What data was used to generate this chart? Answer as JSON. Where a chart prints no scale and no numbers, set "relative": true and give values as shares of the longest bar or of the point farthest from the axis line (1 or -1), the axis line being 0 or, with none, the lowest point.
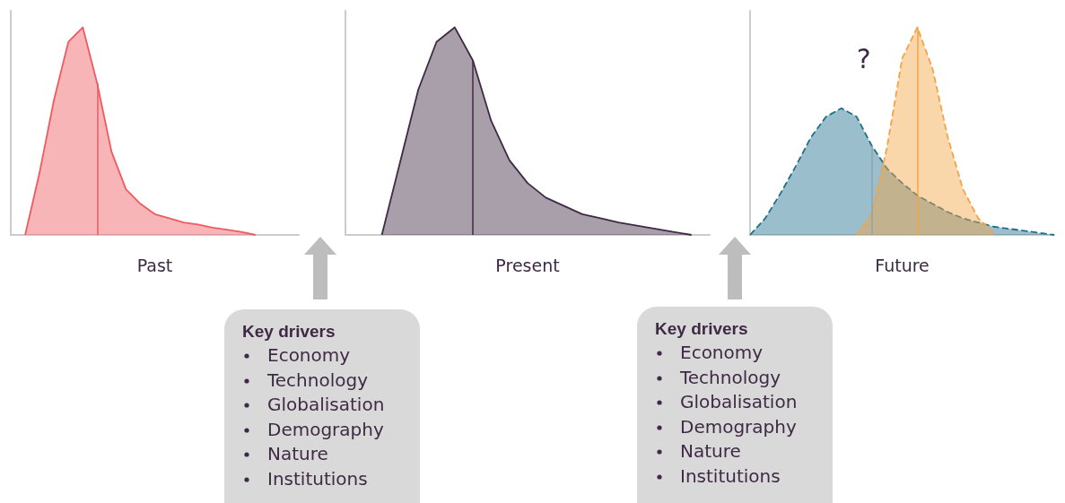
{
  "chart_data": [
    {
      "type": "area",
      "relative": true,
      "xlabel": "Past",
      "marker": "none",
      "line_style": "solid",
      "categories": [
        null,
        null,
        null,
        null,
        null,
        null,
        null,
        null,
        null,
        null,
        null,
        null,
        null,
        null,
        null,
        null,
        null,
        null,
        null,
        null,
        null
      ],
      "series": [
        {
          "color": "#ef5a5f",
          "values": [
            null,
            0,
            0.3,
            0.65,
            0.93,
            1,
            0.73,
            0.4,
            0.22,
            0.15,
            0.1,
            0.08,
            0.06,
            0.05,
            0.035,
            0.025,
            0.015,
            0,
            null,
            null,
            null
          ]
        }
      ]
    },
    {
      "type": "area",
      "relative": true,
      "xlabel": "Present",
      "marker": "none",
      "line_style": "solid",
      "categories": [
        null,
        null,
        null,
        null,
        null,
        null,
        null,
        null,
        null,
        null,
        null,
        null,
        null,
        null,
        null,
        null,
        null,
        null,
        null,
        null,
        null
      ],
      "series": [
        {
          "color": "#3f2a45",
          "values": [
            null,
            null,
            0,
            0.35,
            0.7,
            0.93,
            1,
            0.84,
            0.55,
            0.36,
            0.25,
            0.18,
            0.14,
            0.1,
            0.08,
            0.06,
            0.045,
            0.03,
            0.015,
            0,
            null
          ]
        }
      ]
    },
    {
      "type": "area",
      "relative": true,
      "xlabel": "Future",
      "marker": "none",
      "line_style": "dashed",
      "categories": [
        null,
        null,
        null,
        null,
        null,
        null,
        null,
        null,
        null,
        null,
        null,
        null,
        null,
        null,
        null,
        null,
        null,
        null,
        null,
        null,
        null
      ],
      "series": [
        {
          "color": "#1f6f8b",
          "values": [
            0,
            0.08,
            0.2,
            0.33,
            0.47,
            0.57,
            0.61,
            0.57,
            0.43,
            0.32,
            0.25,
            0.19,
            0.15,
            0.11,
            0.08,
            0.06,
            0.04,
            0.03,
            0.02,
            0.01,
            0
          ]
        },
        {
          "color": "#f5a344",
          "values": [
            null,
            null,
            null,
            null,
            null,
            null,
            null,
            0,
            0.1,
            0.42,
            0.85,
            1,
            0.8,
            0.47,
            0.22,
            0.08,
            0.01,
            null,
            null,
            null,
            null
          ]
        }
      ],
      "annotations": [
        "?"
      ]
    },
    {
      "type": "other",
      "title": "Key drivers",
      "annotations": [
        "Economy",
        "Technology",
        "Globalisation",
        "Demography",
        "Nature",
        "Institutions"
      ]
    },
    {
      "type": "other",
      "title": "Key drivers",
      "annotations": [
        "Economy",
        "Technology",
        "Globalisation",
        "Demography",
        "Nature",
        "Institutions"
      ]
    }
  ]
}
